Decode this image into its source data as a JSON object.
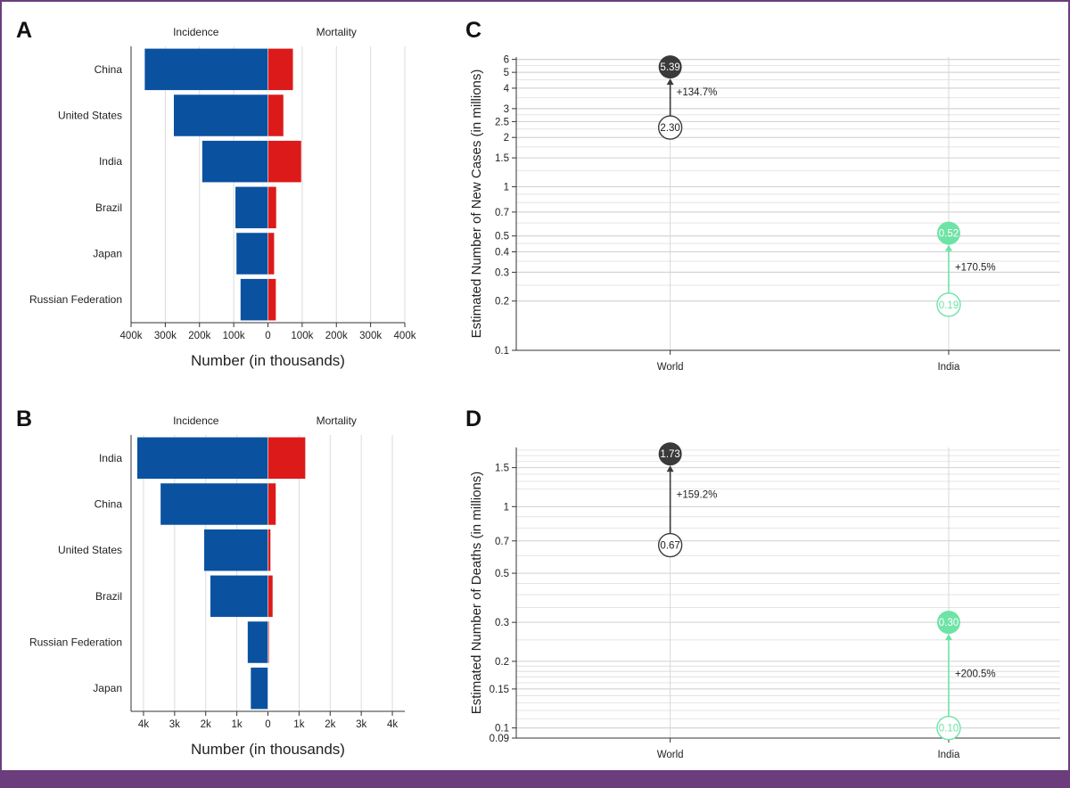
{
  "panels": {
    "A": {
      "letter": "A"
    },
    "B": {
      "letter": "B"
    },
    "C": {
      "letter": "C"
    },
    "D": {
      "letter": "D"
    }
  },
  "colors": {
    "incidence": "#0a52a0",
    "mortality": "#dc1a1a",
    "world": "#3a3a3a",
    "india": "#6ee3a6"
  },
  "chart_data": [
    {
      "panel": "A",
      "type": "bar",
      "orientation": "horizontal-diverging",
      "header_left": "Incidence",
      "header_right": "Mortality",
      "xlabel": "Number (in thousands)",
      "categories": [
        "China",
        "United States",
        "India",
        "Brazil",
        "Japan",
        "Russian Federation"
      ],
      "series": [
        {
          "name": "Incidence",
          "values": [
            360,
            275,
            192,
            95,
            92,
            80
          ]
        },
        {
          "name": "Mortality",
          "values": [
            73,
            45,
            97,
            24,
            18,
            23
          ]
        }
      ],
      "xlim": [
        -400,
        400
      ],
      "xticks": [
        -400,
        -300,
        -200,
        -100,
        0,
        100,
        200,
        300,
        400
      ],
      "xtick_labels": [
        "400k",
        "300k",
        "200k",
        "100k",
        "0",
        "100k",
        "200k",
        "300k",
        "400k"
      ],
      "grid": true
    },
    {
      "panel": "B",
      "type": "bar",
      "orientation": "horizontal-diverging",
      "header_left": "Incidence",
      "header_right": "Mortality",
      "xlabel": "Number (in thousands)",
      "categories": [
        "India",
        "China",
        "United States",
        "Brazil",
        "Russian Federation",
        "Japan"
      ],
      "series": [
        {
          "name": "Incidence",
          "values": [
            4.2,
            3.45,
            2.05,
            1.85,
            0.65,
            0.55
          ]
        },
        {
          "name": "Mortality",
          "values": [
            1.2,
            0.25,
            0.08,
            0.15,
            0.03,
            0.0
          ]
        }
      ],
      "xlim": [
        -4.4,
        4.4
      ],
      "xticks": [
        -4,
        -3,
        -2,
        -1,
        0,
        1,
        2,
        3,
        4
      ],
      "xtick_labels": [
        "4k",
        "3k",
        "2k",
        "1k",
        "0",
        "1k",
        "2k",
        "3k",
        "4k"
      ],
      "grid": true
    },
    {
      "panel": "C",
      "type": "scatter",
      "yscale": "log",
      "ylabel": "Estimated Number of New Cases (in millions)",
      "categories": [
        "World",
        "India"
      ],
      "ylim": [
        0.1,
        6.2
      ],
      "yticks": [
        6,
        5,
        4,
        3,
        2.5,
        2,
        1.5,
        1,
        0.7,
        0.5,
        0.4,
        0.3,
        0.2,
        0.1
      ],
      "ytick_labels": [
        "6",
        "5",
        "4",
        "3",
        "2.5",
        "2",
        "1.5",
        "1",
        "0.7",
        "0.5",
        "0.4",
        "0.3",
        "0.2",
        "0.1"
      ],
      "points": [
        {
          "category": "World",
          "from": 2.3,
          "to": 5.39,
          "from_label": "2.30",
          "to_label": "5.39",
          "change": "+134.7%",
          "color_key": "world"
        },
        {
          "category": "India",
          "from": 0.19,
          "to": 0.52,
          "from_label": "0.19",
          "to_label": "0.52",
          "change": "+170.5%",
          "color_key": "india"
        }
      ]
    },
    {
      "panel": "D",
      "type": "scatter",
      "yscale": "log",
      "ylabel": "Estimated Number of Deaths (in millions)",
      "categories": [
        "World",
        "India"
      ],
      "ylim": [
        0.09,
        1.85
      ],
      "yticks": [
        1.5,
        1,
        0.7,
        0.5,
        0.3,
        0.2,
        0.15,
        0.1,
        0.09
      ],
      "ytick_labels": [
        "1.5",
        "1",
        "0.7",
        "0.5",
        "0.3",
        "0.2",
        "0.15",
        "0.1",
        "0.09"
      ],
      "points": [
        {
          "category": "World",
          "from": 0.67,
          "to": 1.73,
          "from_label": "0.67",
          "to_label": "1.73",
          "change": "+159.2%",
          "color_key": "world"
        },
        {
          "category": "India",
          "from": 0.1,
          "to": 0.3,
          "from_label": "0.10",
          "to_label": "0.30",
          "change": "+200.5%",
          "color_key": "india"
        }
      ]
    }
  ]
}
